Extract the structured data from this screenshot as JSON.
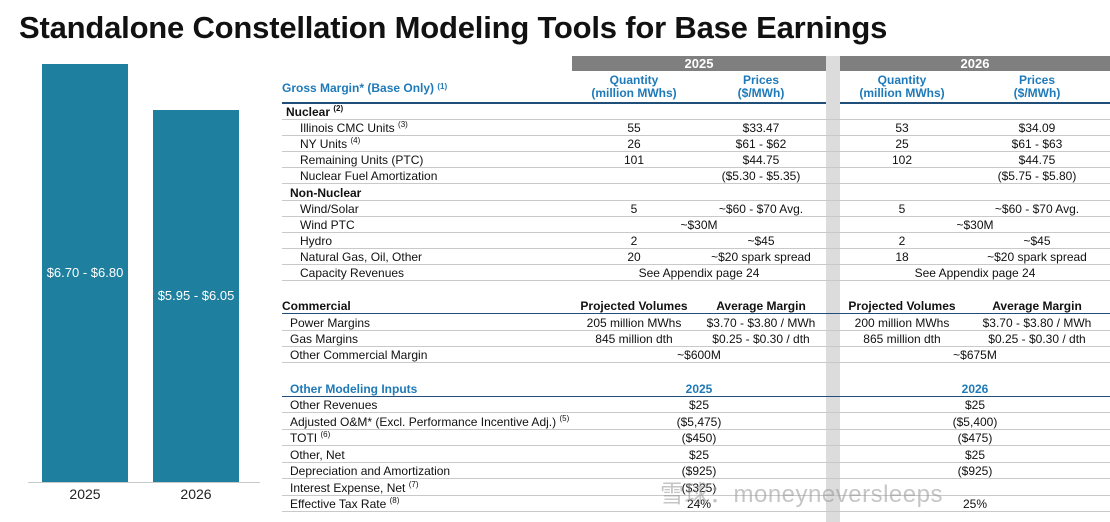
{
  "title": "Standalone Constellation Modeling Tools for Base Earnings",
  "chart_data": {
    "type": "bar",
    "categories": [
      "2025",
      "2026"
    ],
    "value_labels": [
      "$6.70 - $6.80",
      "$5.95 - $6.05"
    ],
    "values": [
      6.75,
      6.0
    ],
    "colors": {
      "bar": "#1e7f9e"
    }
  },
  "table": {
    "years": [
      "2025",
      "2026"
    ],
    "gross_margin": {
      "label": "Gross Margin* (Base Only)",
      "note": "(1)",
      "col_headers": [
        "Quantity\n(million MWhs)",
        "Prices\n($/MWh)"
      ]
    },
    "nuclear": {
      "label": "Nuclear",
      "note": "(2)",
      "rows": [
        {
          "label": "Illinois CMC Units",
          "note": "(3)",
          "q25": "55",
          "p25": "$33.47",
          "q26": "53",
          "p26": "$34.09"
        },
        {
          "label": "NY Units",
          "note": "(4)",
          "q25": "26",
          "p25": "$61 - $62",
          "q26": "25",
          "p26": "$61 - $63"
        },
        {
          "label": "Remaining Units (PTC)",
          "note": "",
          "q25": "101",
          "p25": "$44.75",
          "q26": "102",
          "p26": "$44.75"
        },
        {
          "label": "Nuclear Fuel Amortization",
          "note": "",
          "q25": "",
          "p25": "($5.30 - $5.35)",
          "q26": "",
          "p26": "($5.75 - $5.80)"
        }
      ]
    },
    "non_nuclear": {
      "label": "Non-Nuclear",
      "rows": [
        {
          "label": "Wind/Solar",
          "q25": "5",
          "p25": "~$60 - $70 Avg.",
          "q26": "5",
          "p26": "~$60 - $70 Avg."
        },
        {
          "label": "Wind PTC",
          "span25": "~$30M",
          "span26": "~$30M"
        },
        {
          "label": "Hydro",
          "q25": "2",
          "p25": "~$45",
          "q26": "2",
          "p26": "~$45"
        },
        {
          "label": "Natural Gas, Oil, Other",
          "q25": "20",
          "p25": "~$20 spark spread",
          "q26": "18",
          "p26": "~$20 spark spread"
        },
        {
          "label": "Capacity Revenues",
          "span25": "See Appendix page 24",
          "span26": "See Appendix page 24"
        }
      ]
    },
    "commercial": {
      "label": "Commercial",
      "col_headers": [
        "Projected Volumes",
        "Average Margin"
      ],
      "rows": [
        {
          "label": "Power Margins",
          "v25": "205 million MWhs",
          "m25": "$3.70 - $3.80 / MWh",
          "v26": "200 million MWhs",
          "m26": "$3.70 - $3.80 / MWh"
        },
        {
          "label": "Gas Margins",
          "v25": "845 million dth",
          "m25": "$0.25 - $0.30 / dth",
          "v26": "865 million dth",
          "m26": "$0.25 - $0.30 / dth"
        },
        {
          "label": "Other Commercial Margin",
          "span25": "~$600M",
          "span26": "~$675M"
        }
      ]
    },
    "other_inputs": {
      "label": "Other Modeling Inputs",
      "col_headers": [
        "2025",
        "2026"
      ],
      "rows": [
        {
          "label": "Other Revenues",
          "note": "",
          "v25": "$25",
          "v26": "$25"
        },
        {
          "label": "Adjusted O&M* (Excl. Performance Incentive Adj.)",
          "note": "(5)",
          "v25": "($5,475)",
          "v26": "($5,400)"
        },
        {
          "label": "TOTI",
          "note": "(6)",
          "v25": "($450)",
          "v26": "($475)"
        },
        {
          "label": "Other, Net",
          "note": "",
          "v25": "$25",
          "v26": "$25"
        },
        {
          "label": "Depreciation and Amortization",
          "note": "",
          "v25": "($925)",
          "v26": "($925)"
        },
        {
          "label": "Interest Expense, Net",
          "note": "(7)",
          "v25": "($325)",
          "v26": ""
        },
        {
          "label": "Effective Tax Rate",
          "note": "(8)",
          "v25": "24%",
          "v26": "25%"
        }
      ]
    }
  },
  "watermark": "雪球：moneyneversleeps"
}
